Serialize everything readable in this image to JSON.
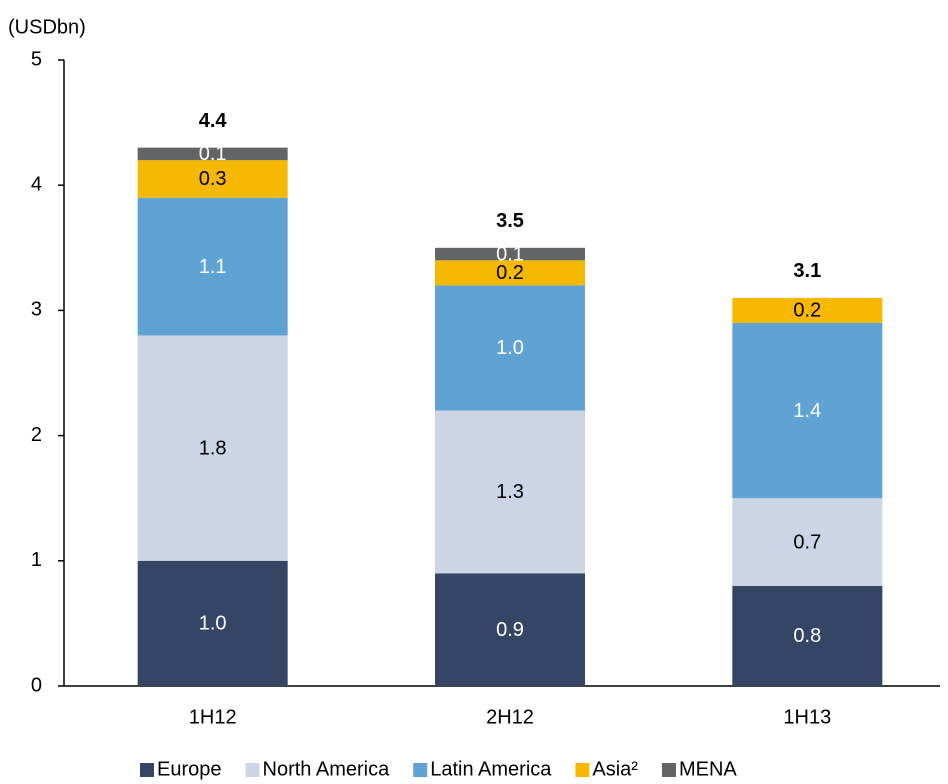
{
  "chart_data": {
    "type": "stacked_bar",
    "y_label": "(USDbn)",
    "categories": [
      "1H12",
      "2H12",
      "1H13"
    ],
    "series": [
      {
        "name": "Europe",
        "color": "#344565",
        "values": [
          1.0,
          0.9,
          0.8
        ],
        "value_labels": [
          "1.0",
          "0.9",
          "0.8"
        ]
      },
      {
        "name": "North America",
        "color": "#cbd5e6",
        "values": [
          1.8,
          1.3,
          0.7
        ],
        "value_labels": [
          "1.8",
          "1.3",
          "0.7"
        ]
      },
      {
        "name": "Latin America",
        "color": "#5fa3d4",
        "values": [
          1.1,
          1.0,
          1.4
        ],
        "value_labels": [
          "1.1",
          "1.0",
          "1.4"
        ]
      },
      {
        "name": "Asia²",
        "color": "#f7b800",
        "values": [
          0.3,
          0.2,
          0.2
        ],
        "value_labels": [
          "0.3",
          "0.2",
          "0.2"
        ]
      },
      {
        "name": "MENA",
        "color": "#636466",
        "values": [
          0.1,
          0.1,
          null
        ],
        "value_labels": [
          "0.1",
          "0.1",
          null
        ]
      }
    ],
    "totals": [
      4.4,
      3.5,
      3.1
    ],
    "ylim": [
      0,
      5
    ],
    "yticks": [
      0,
      1,
      2,
      3,
      4,
      5
    ],
    "grid": false,
    "legend": "bottom"
  }
}
